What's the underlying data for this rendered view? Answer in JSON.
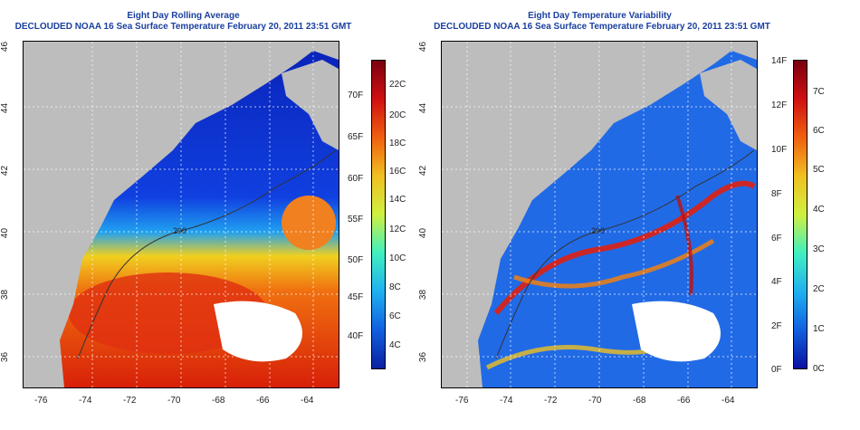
{
  "left_panel": {
    "title": "Eight Day Rolling Average",
    "subtitle": "DECLOUDED NOAA 16 Sea Surface Temperature February 20, 2011 23:51 GMT",
    "x_ticks": [
      "-76",
      "-74",
      "-72",
      "-70",
      "-68",
      "-66",
      "-64"
    ],
    "y_ticks": [
      "46",
      "44",
      "42",
      "40",
      "38",
      "36"
    ],
    "contour_labels": [
      "200",
      "200",
      "200"
    ],
    "colorbar": {
      "celsius": [
        "22C",
        "20C",
        "18C",
        "16C",
        "14C",
        "12C",
        "10C",
        "8C",
        "6C",
        "4C"
      ],
      "fahrenheit": [
        "70F",
        "65F",
        "60F",
        "55F",
        "50F",
        "45F",
        "40F"
      ]
    }
  },
  "right_panel": {
    "title": "Eight Day Temperature Variability",
    "subtitle": "DECLOUDED NOAA 16 Sea Surface Temperature February 20, 2011 23:51 GMT",
    "x_ticks": [
      "-76",
      "-74",
      "-72",
      "-70",
      "-68",
      "-66",
      "-64"
    ],
    "y_ticks": [
      "46",
      "44",
      "42",
      "40",
      "38",
      "36"
    ],
    "contour_labels": [
      "200",
      "200",
      "200"
    ],
    "colorbar": {
      "celsius": [
        "7C",
        "6C",
        "5C",
        "4C",
        "3C",
        "2C",
        "1C",
        "0C"
      ],
      "fahrenheit": [
        "14F",
        "12F",
        "10F",
        "8F",
        "6F",
        "4F",
        "2F",
        "0F"
      ]
    }
  },
  "colors": {
    "land": "#bdbdbd",
    "cold_water": "#0a2bc8",
    "warm_water": "#e83a10"
  }
}
